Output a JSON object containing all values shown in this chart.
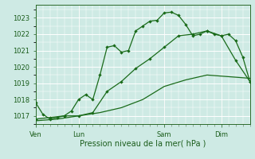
{
  "xlabel": "Pression niveau de la mer( hPa )",
  "bg_color": "#ceeae4",
  "grid_color": "#ffffff",
  "line_color": "#1a6b1a",
  "ylim": [
    1016.5,
    1023.8
  ],
  "yticks": [
    1017,
    1018,
    1019,
    1020,
    1021,
    1022,
    1023
  ],
  "day_labels": [
    "Ven",
    "Lun",
    "Sam",
    "Dim"
  ],
  "day_positions": [
    0,
    6,
    18,
    26
  ],
  "xlim": [
    0,
    30
  ],
  "series1_x": [
    0,
    1,
    2,
    3,
    4,
    5,
    6,
    7,
    8,
    9,
    10,
    11,
    12,
    13,
    14,
    15,
    16,
    17,
    18,
    19,
    20,
    21,
    22,
    23,
    24,
    25,
    26,
    27,
    28,
    29,
    30
  ],
  "series1_y": [
    1017.8,
    1017.1,
    1016.8,
    1016.9,
    1017.0,
    1017.3,
    1018.0,
    1018.3,
    1018.0,
    1019.5,
    1021.2,
    1021.3,
    1020.9,
    1021.0,
    1022.2,
    1022.5,
    1022.8,
    1022.85,
    1023.3,
    1023.35,
    1023.15,
    1022.6,
    1021.9,
    1022.0,
    1022.2,
    1022.0,
    1021.9,
    1022.0,
    1021.6,
    1020.6,
    1019.1
  ],
  "series2_x": [
    0,
    2,
    4,
    6,
    8,
    10,
    12,
    14,
    16,
    18,
    20,
    22,
    24,
    26,
    28,
    30
  ],
  "series2_y": [
    1016.8,
    1016.9,
    1017.0,
    1017.0,
    1017.2,
    1018.5,
    1019.1,
    1019.9,
    1020.5,
    1021.2,
    1021.9,
    1022.0,
    1022.2,
    1021.9,
    1020.4,
    1019.1
  ],
  "series3_x": [
    0,
    3,
    6,
    9,
    12,
    15,
    18,
    21,
    24,
    27,
    30
  ],
  "series3_y": [
    1016.7,
    1016.8,
    1017.0,
    1017.2,
    1017.5,
    1018.0,
    1018.8,
    1019.2,
    1019.5,
    1019.4,
    1019.3
  ]
}
